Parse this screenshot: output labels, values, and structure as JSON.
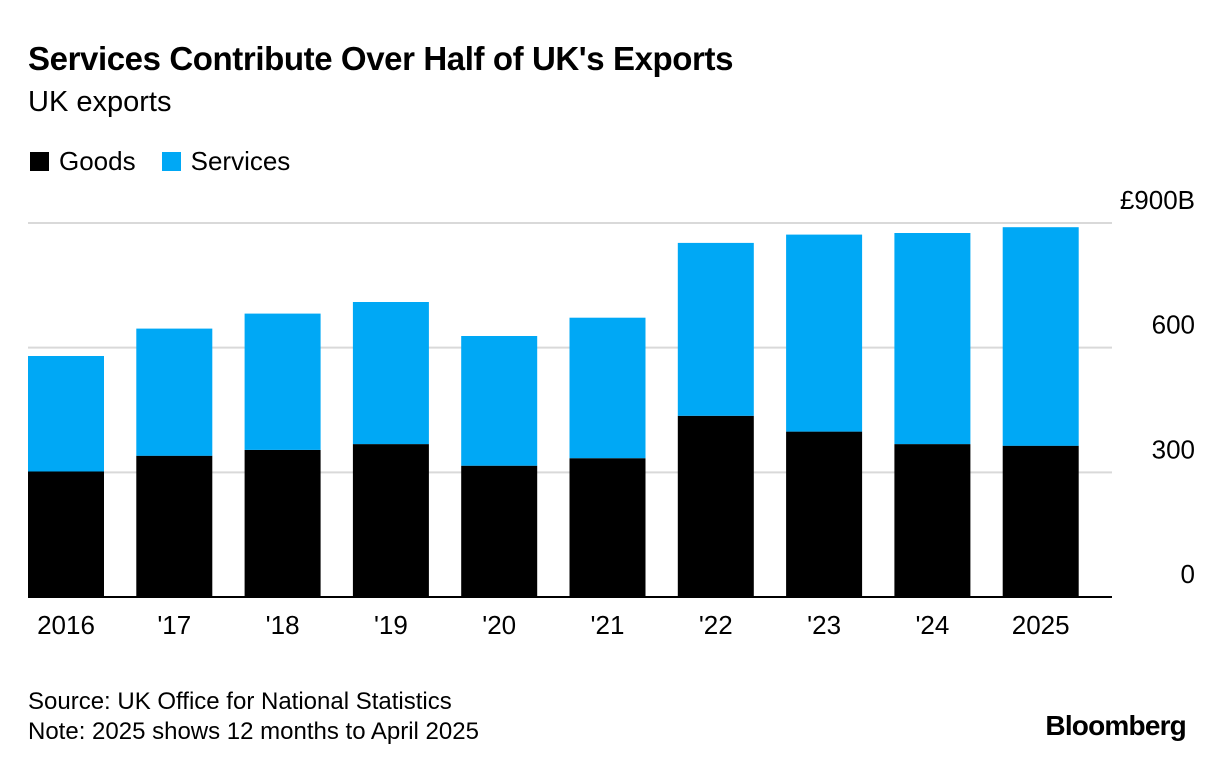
{
  "header": {
    "title": "Services Contribute Over Half of UK's Exports",
    "subtitle": "UK exports"
  },
  "legend": {
    "goods_label": "Goods",
    "services_label": "Services"
  },
  "colors": {
    "goods": "#000000",
    "services": "#00a8f5",
    "grid": "#d9d9d9",
    "axis": "#000000"
  },
  "chart_data": {
    "type": "bar",
    "stacked": true,
    "categories": [
      "2016",
      "'17",
      "'18",
      "'19",
      "'20",
      "'21",
      "'22",
      "'23",
      "'24",
      "2025"
    ],
    "series": [
      {
        "name": "Goods",
        "values": [
          302,
          340,
          354,
          368,
          316,
          334,
          436,
          398,
          368,
          364
        ]
      },
      {
        "name": "Services",
        "values": [
          278,
          306,
          328,
          342,
          312,
          338,
          416,
          474,
          508,
          526
        ]
      }
    ],
    "ylim": [
      0,
      900
    ],
    "y_ticks": [
      {
        "value": 0,
        "label": "0"
      },
      {
        "value": 300,
        "label": "300"
      },
      {
        "value": 600,
        "label": "600"
      },
      {
        "value": 900,
        "label": "£900B"
      }
    ],
    "grid": true,
    "y_axis_side": "right",
    "legend_position": "top-left"
  },
  "footer": {
    "source": "Source: UK Office for National Statistics",
    "note": "Note: 2025 shows 12 months to April 2025",
    "brand": "Bloomberg"
  }
}
